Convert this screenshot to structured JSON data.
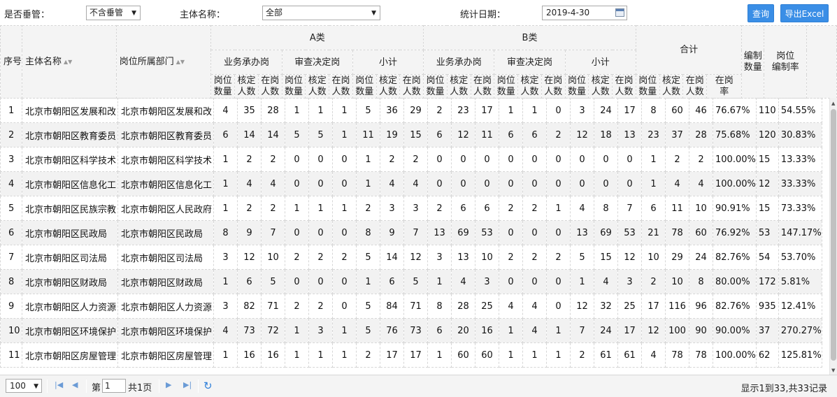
{
  "filters": {
    "supervise_label": "是否垂管：",
    "supervise_value": "不含垂管",
    "entity_label": "主体名称：",
    "entity_value": "全部",
    "date_label": "统计日期：",
    "date_value": "2019-4-30"
  },
  "buttons": {
    "query": "查询",
    "export": "导出Excel"
  },
  "header": {
    "seq": "序号",
    "entity_name": "主体名称",
    "department": "岗位所属部门",
    "class_a": "A类",
    "class_b": "B类",
    "total": "合计",
    "business": "业务承办岗",
    "review": "审查决定岗",
    "subtotal": "小计",
    "posts_l1": "岗位",
    "posts_l2": "数量",
    "quota_l1": "核定",
    "quota_l2": "人数",
    "onduty_l1": "在岗",
    "onduty_l2": "人数",
    "rate_l1": "在岗",
    "rate_l2": "率",
    "staffing_l1": "编制",
    "staffing_l2": "数量",
    "ratio_l1": "岗位",
    "ratio_l2": "编制率"
  },
  "rows": [
    {
      "idx": "1",
      "name": "北京市朝阳区发展和改",
      "dept": "北京市朝阳区发展和改",
      "a1": "4",
      "a2": "35",
      "a3": "28",
      "a4": "1",
      "a5": "1",
      "a6": "1",
      "a7": "5",
      "a8": "36",
      "a9": "29",
      "b1": "2",
      "b2": "23",
      "b3": "17",
      "b4": "1",
      "b5": "1",
      "b6": "0",
      "b7": "3",
      "b8": "24",
      "b9": "17",
      "t1": "8",
      "t2": "60",
      "t3": "46",
      "rate": "76.67%",
      "staff": "110",
      "ratio": "54.55%"
    },
    {
      "idx": "2",
      "name": "北京市朝阳区教育委员",
      "dept": "北京市朝阳区教育委员",
      "a1": "6",
      "a2": "14",
      "a3": "14",
      "a4": "5",
      "a5": "5",
      "a6": "1",
      "a7": "11",
      "a8": "19",
      "a9": "15",
      "b1": "6",
      "b2": "12",
      "b3": "11",
      "b4": "6",
      "b5": "6",
      "b6": "2",
      "b7": "12",
      "b8": "18",
      "b9": "13",
      "t1": "23",
      "t2": "37",
      "t3": "28",
      "rate": "75.68%",
      "staff": "120",
      "ratio": "30.83%"
    },
    {
      "idx": "3",
      "name": "北京市朝阳区科学技术",
      "dept": "北京市朝阳区科学技术",
      "a1": "1",
      "a2": "2",
      "a3": "2",
      "a4": "0",
      "a5": "0",
      "a6": "0",
      "a7": "1",
      "a8": "2",
      "a9": "2",
      "b1": "0",
      "b2": "0",
      "b3": "0",
      "b4": "0",
      "b5": "0",
      "b6": "0",
      "b7": "0",
      "b8": "0",
      "b9": "0",
      "t1": "1",
      "t2": "2",
      "t3": "2",
      "rate": "100.00%",
      "staff": "15",
      "ratio": "13.33%"
    },
    {
      "idx": "4",
      "name": "北京市朝阳区信息化工",
      "dept": "北京市朝阳区信息化工",
      "a1": "1",
      "a2": "4",
      "a3": "4",
      "a4": "0",
      "a5": "0",
      "a6": "0",
      "a7": "1",
      "a8": "4",
      "a9": "4",
      "b1": "0",
      "b2": "0",
      "b3": "0",
      "b4": "0",
      "b5": "0",
      "b6": "0",
      "b7": "0",
      "b8": "0",
      "b9": "0",
      "t1": "1",
      "t2": "4",
      "t3": "4",
      "rate": "100.00%",
      "staff": "12",
      "ratio": "33.33%"
    },
    {
      "idx": "5",
      "name": "北京市朝阳区民族宗教",
      "dept": "北京市朝阳区人民政府",
      "a1": "1",
      "a2": "2",
      "a3": "2",
      "a4": "1",
      "a5": "1",
      "a6": "1",
      "a7": "2",
      "a8": "3",
      "a9": "3",
      "b1": "2",
      "b2": "6",
      "b3": "6",
      "b4": "2",
      "b5": "2",
      "b6": "1",
      "b7": "4",
      "b8": "8",
      "b9": "7",
      "t1": "6",
      "t2": "11",
      "t3": "10",
      "rate": "90.91%",
      "staff": "15",
      "ratio": "73.33%"
    },
    {
      "idx": "6",
      "name": "北京市朝阳区民政局",
      "dept": "北京市朝阳区民政局",
      "a1": "8",
      "a2": "9",
      "a3": "7",
      "a4": "0",
      "a5": "0",
      "a6": "0",
      "a7": "8",
      "a8": "9",
      "a9": "7",
      "b1": "13",
      "b2": "69",
      "b3": "53",
      "b4": "0",
      "b5": "0",
      "b6": "0",
      "b7": "13",
      "b8": "69",
      "b9": "53",
      "t1": "21",
      "t2": "78",
      "t3": "60",
      "rate": "76.92%",
      "staff": "53",
      "ratio": "147.17%"
    },
    {
      "idx": "7",
      "name": "北京市朝阳区司法局",
      "dept": "北京市朝阳区司法局",
      "a1": "3",
      "a2": "12",
      "a3": "10",
      "a4": "2",
      "a5": "2",
      "a6": "2",
      "a7": "5",
      "a8": "14",
      "a9": "12",
      "b1": "3",
      "b2": "13",
      "b3": "10",
      "b4": "2",
      "b5": "2",
      "b6": "2",
      "b7": "5",
      "b8": "15",
      "b9": "12",
      "t1": "10",
      "t2": "29",
      "t3": "24",
      "rate": "82.76%",
      "staff": "54",
      "ratio": "53.70%"
    },
    {
      "idx": "8",
      "name": "北京市朝阳区财政局",
      "dept": "北京市朝阳区财政局",
      "a1": "1",
      "a2": "6",
      "a3": "5",
      "a4": "0",
      "a5": "0",
      "a6": "0",
      "a7": "1",
      "a8": "6",
      "a9": "5",
      "b1": "1",
      "b2": "4",
      "b3": "3",
      "b4": "0",
      "b5": "0",
      "b6": "0",
      "b7": "1",
      "b8": "4",
      "b9": "3",
      "t1": "2",
      "t2": "10",
      "t3": "8",
      "rate": "80.00%",
      "staff": "172",
      "ratio": "5.81%"
    },
    {
      "idx": "9",
      "name": "北京市朝阳区人力资源",
      "dept": "北京市朝阳区人力资源",
      "a1": "3",
      "a2": "82",
      "a3": "71",
      "a4": "2",
      "a5": "2",
      "a6": "0",
      "a7": "5",
      "a8": "84",
      "a9": "71",
      "b1": "8",
      "b2": "28",
      "b3": "25",
      "b4": "4",
      "b5": "4",
      "b6": "0",
      "b7": "12",
      "b8": "32",
      "b9": "25",
      "t1": "17",
      "t2": "116",
      "t3": "96",
      "rate": "82.76%",
      "staff": "935",
      "ratio": "12.41%"
    },
    {
      "idx": "10",
      "name": "北京市朝阳区环境保护",
      "dept": "北京市朝阳区环境保护",
      "a1": "4",
      "a2": "73",
      "a3": "72",
      "a4": "1",
      "a5": "3",
      "a6": "1",
      "a7": "5",
      "a8": "76",
      "a9": "73",
      "b1": "6",
      "b2": "20",
      "b3": "16",
      "b4": "1",
      "b5": "4",
      "b6": "1",
      "b7": "7",
      "b8": "24",
      "b9": "17",
      "t1": "12",
      "t2": "100",
      "t3": "90",
      "rate": "90.00%",
      "staff": "37",
      "ratio": "270.27%"
    },
    {
      "idx": "11",
      "name": "北京市朝阳区房屋管理",
      "dept": "北京市朝阳区房屋管理",
      "a1": "1",
      "a2": "16",
      "a3": "16",
      "a4": "1",
      "a5": "1",
      "a6": "1",
      "a7": "2",
      "a8": "17",
      "a9": "17",
      "b1": "1",
      "b2": "60",
      "b3": "60",
      "b4": "1",
      "b5": "1",
      "b6": "1",
      "b7": "2",
      "b8": "61",
      "b9": "61",
      "t1": "4",
      "t2": "78",
      "t3": "78",
      "rate": "100.00%",
      "staff": "62",
      "ratio": "125.81%"
    }
  ],
  "pager": {
    "page_size": "100",
    "page_prefix": "第",
    "page_value": "1",
    "page_suffix": "共1页",
    "info": "显示1到33,共33记录"
  },
  "icons": {
    "dropdown": "caret-down",
    "calendar": "calendar",
    "sort": "sort-both",
    "first": "first-page",
    "prev": "prev-page",
    "next": "next-page",
    "last": "last-page",
    "refresh": "refresh"
  },
  "colors": {
    "primary_button": "#3a8ee6",
    "header_bg": "#f4f4f4",
    "stripe": "#f2f2f2"
  }
}
